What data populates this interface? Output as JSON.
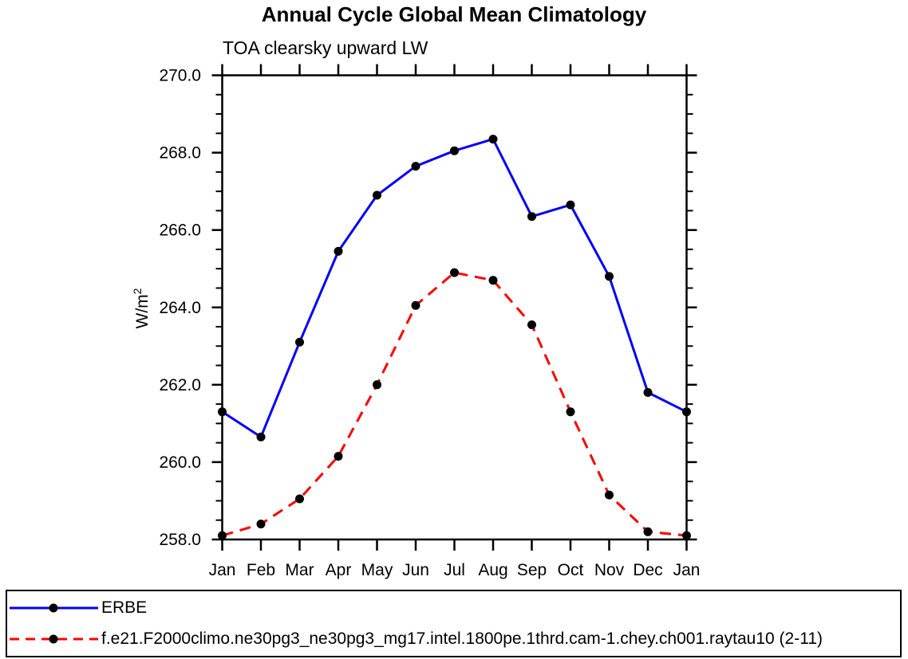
{
  "chart_data": {
    "type": "line",
    "title": "Annual Cycle Global Mean Climatology",
    "subtitle": "TOA clearsky upward LW",
    "ylabel": "W/m2",
    "ylabel_base": "W/m",
    "ylabel_sup": "2",
    "categories": [
      "Jan",
      "Feb",
      "Mar",
      "Apr",
      "May",
      "Jun",
      "Jul",
      "Aug",
      "Sep",
      "Oct",
      "Nov",
      "Dec",
      "Jan"
    ],
    "ylim": [
      258.0,
      270.0
    ],
    "ytick_step": 2.0,
    "yminor_step": 0.5,
    "ytick_decimals": 1,
    "grid": false,
    "legend_position": "bottom",
    "axis_color": "#000000",
    "marker_shape": "filled-circle",
    "series": [
      {
        "name": "ERBE",
        "color": "#0000ff",
        "style": "solid",
        "marker_color": "#000000",
        "values": [
          261.3,
          260.65,
          263.1,
          265.45,
          266.9,
          267.65,
          268.05,
          268.35,
          266.35,
          266.65,
          264.8,
          261.8,
          261.3
        ]
      },
      {
        "name": "f.e21.F2000climo.ne30pg3_ne30pg3_mg17.intel.1800pe.1thrd.cam-1.chey.ch001.raytau10 (2-11)",
        "color": "#ff0000",
        "style": "dashed",
        "marker_color": "#000000",
        "values": [
          258.1,
          258.4,
          259.05,
          260.15,
          262.0,
          264.05,
          264.9,
          264.7,
          263.55,
          261.3,
          259.15,
          258.2,
          258.1
        ]
      }
    ]
  }
}
